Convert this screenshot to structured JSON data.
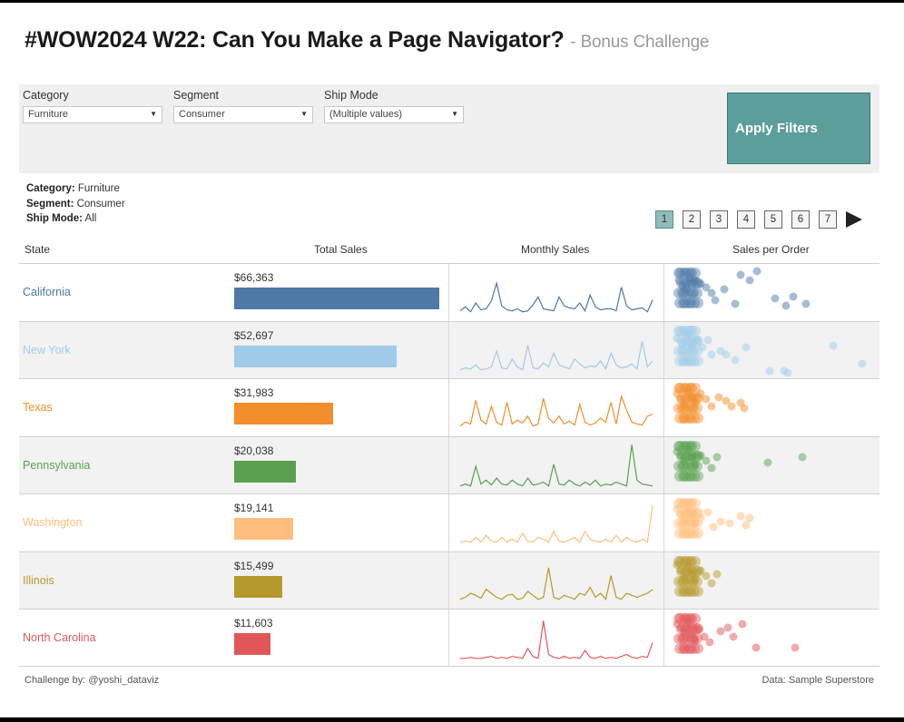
{
  "title": {
    "main": "#WOW2024 W22: Can You Make a Page Navigator?",
    "subtitle": "- Bonus Challenge"
  },
  "filters": [
    {
      "label": "Category",
      "value": "Furniture"
    },
    {
      "label": "Segment",
      "value": "Consumer"
    },
    {
      "label": "Ship Mode",
      "value": "(Multiple values)"
    }
  ],
  "apply_button": "Apply Filters",
  "summary": [
    {
      "key": "Category:",
      "value": "Furniture"
    },
    {
      "key": "Segment:",
      "value": "Consumer"
    },
    {
      "key": "Ship Mode:",
      "value": "All"
    }
  ],
  "pager": {
    "pages": [
      "1",
      "2",
      "3",
      "4",
      "5",
      "6",
      "7"
    ],
    "current_page": "1",
    "next_icon": "play-triangle-icon"
  },
  "columns": {
    "state": "State",
    "total_sales": "Total Sales",
    "monthly_sales": "Monthly Sales",
    "sales_per_order": "Sales per Order"
  },
  "rows": [
    {
      "state": "California",
      "sales_label": "$66,363",
      "sales": 66363,
      "color": "#4e79a7",
      "monthly": [
        4,
        8,
        3,
        12,
        5,
        6,
        14,
        32,
        9,
        5,
        4,
        6,
        3,
        4,
        10,
        18,
        6,
        5,
        4,
        18,
        9,
        7,
        6,
        12,
        4,
        20,
        8,
        5,
        6,
        6,
        4,
        28,
        9,
        5,
        6,
        7,
        3,
        15
      ],
      "orders": [
        [
          10,
          12
        ],
        [
          14,
          18
        ],
        [
          18,
          22
        ],
        [
          22,
          10
        ],
        [
          28,
          12
        ],
        [
          34,
          16
        ],
        [
          40,
          20
        ],
        [
          46,
          26
        ],
        [
          50,
          34
        ],
        [
          60,
          22
        ],
        [
          72,
          38
        ],
        [
          78,
          6
        ],
        [
          88,
          12
        ],
        [
          96,
          2
        ],
        [
          116,
          32
        ],
        [
          128,
          40
        ],
        [
          136,
          30
        ],
        [
          150,
          38
        ]
      ]
    },
    {
      "state": "New York",
      "sales_label": "$52,697",
      "sales": 52697,
      "color": "#a0cbe8",
      "monthly": [
        3,
        5,
        4,
        8,
        3,
        4,
        6,
        22,
        5,
        4,
        14,
        6,
        3,
        28,
        5,
        4,
        10,
        6,
        20,
        8,
        6,
        4,
        14,
        9,
        5,
        7,
        6,
        12,
        4,
        20,
        8,
        5,
        6,
        9,
        4,
        32,
        6,
        12
      ],
      "orders": [
        [
          8,
          12
        ],
        [
          14,
          18
        ],
        [
          20,
          8
        ],
        [
          24,
          20
        ],
        [
          30,
          14
        ],
        [
          36,
          22
        ],
        [
          42,
          14
        ],
        [
          46,
          30
        ],
        [
          56,
          26
        ],
        [
          62,
          30
        ],
        [
          72,
          36
        ],
        [
          84,
          22
        ],
        [
          110,
          48
        ],
        [
          126,
          48
        ],
        [
          130,
          50
        ],
        [
          180,
          20
        ],
        [
          212,
          40
        ]
      ]
    },
    {
      "state": "Texas",
      "sales_label": "$31,983",
      "sales": 31983,
      "color": "#f28e2b",
      "monthly": [
        4,
        8,
        6,
        30,
        10,
        6,
        24,
        8,
        5,
        28,
        6,
        10,
        7,
        14,
        4,
        6,
        32,
        12,
        7,
        14,
        6,
        9,
        5,
        26,
        8,
        5,
        7,
        12,
        8,
        28,
        6,
        34,
        20,
        8,
        6,
        5,
        14,
        16
      ],
      "orders": [
        [
          8,
          10
        ],
        [
          12,
          16
        ],
        [
          16,
          22
        ],
        [
          20,
          8
        ],
        [
          24,
          14
        ],
        [
          28,
          20
        ],
        [
          34,
          10
        ],
        [
          40,
          16
        ],
        [
          46,
          24
        ],
        [
          54,
          14
        ],
        [
          62,
          18
        ],
        [
          68,
          24
        ],
        [
          78,
          20
        ],
        [
          82,
          26
        ]
      ]
    },
    {
      "state": "Pennsylvania",
      "sales_label": "$20,038",
      "sales": 20038,
      "color": "#59a14f",
      "monthly": [
        2,
        4,
        2,
        22,
        4,
        8,
        3,
        10,
        4,
        3,
        8,
        4,
        2,
        10,
        3,
        4,
        6,
        2,
        24,
        4,
        3,
        8,
        4,
        2,
        6,
        3,
        8,
        2,
        4,
        3,
        6,
        4,
        2,
        44,
        8,
        4,
        3,
        2
      ],
      "orders": [
        [
          8,
          10
        ],
        [
          12,
          14
        ],
        [
          16,
          20
        ],
        [
          20,
          8
        ],
        [
          24,
          16
        ],
        [
          28,
          24
        ],
        [
          34,
          14
        ],
        [
          40,
          20
        ],
        [
          46,
          28
        ],
        [
          52,
          16
        ],
        [
          108,
          22
        ],
        [
          146,
          16
        ]
      ]
    },
    {
      "state": "Washington",
      "sales_label": "$19,141",
      "sales": 19141,
      "color": "#ffbe7d",
      "monthly": [
        3,
        4,
        3,
        8,
        3,
        10,
        4,
        3,
        8,
        3,
        6,
        3,
        12,
        4,
        3,
        8,
        6,
        3,
        14,
        4,
        3,
        5,
        8,
        3,
        14,
        6,
        4,
        3,
        6,
        3,
        10,
        3,
        8,
        4,
        3,
        6,
        3,
        40
      ],
      "orders": [
        [
          8,
          10
        ],
        [
          12,
          16
        ],
        [
          16,
          22
        ],
        [
          20,
          12
        ],
        [
          24,
          18
        ],
        [
          28,
          26
        ],
        [
          34,
          20
        ],
        [
          42,
          14
        ],
        [
          48,
          30
        ],
        [
          56,
          24
        ],
        [
          66,
          26
        ],
        [
          78,
          18
        ],
        [
          84,
          28
        ],
        [
          88,
          20
        ]
      ]
    },
    {
      "state": "Illinois",
      "sales_label": "$15,499",
      "sales": 15499,
      "color": "#b6992d",
      "monthly": [
        4,
        6,
        10,
        8,
        5,
        14,
        10,
        6,
        4,
        8,
        9,
        4,
        5,
        12,
        8,
        4,
        6,
        36,
        6,
        4,
        8,
        6,
        4,
        10,
        8,
        16,
        6,
        10,
        4,
        28,
        6,
        4,
        10,
        8,
        6,
        8,
        10,
        14
      ],
      "orders": [
        [
          8,
          8
        ],
        [
          12,
          14
        ],
        [
          16,
          22
        ],
        [
          20,
          10
        ],
        [
          24,
          18
        ],
        [
          28,
          24
        ],
        [
          34,
          14
        ],
        [
          40,
          20
        ],
        [
          46,
          28
        ],
        [
          52,
          18
        ]
      ]
    },
    {
      "state": "North Carolina",
      "sales_label": "$11,603",
      "sales": 11603,
      "color": "#e15759",
      "monthly": [
        2,
        2,
        3,
        2,
        2,
        3,
        4,
        2,
        3,
        2,
        4,
        3,
        2,
        12,
        4,
        2,
        40,
        6,
        3,
        2,
        4,
        2,
        3,
        2,
        10,
        3,
        2,
        4,
        2,
        3,
        2,
        4,
        6,
        3,
        2,
        4,
        3,
        18
      ],
      "orders": [
        [
          8,
          10
        ],
        [
          12,
          14
        ],
        [
          16,
          20
        ],
        [
          20,
          8
        ],
        [
          24,
          22
        ],
        [
          28,
          28
        ],
        [
          32,
          16
        ],
        [
          38,
          24
        ],
        [
          44,
          30
        ],
        [
          56,
          18
        ],
        [
          64,
          14
        ],
        [
          70,
          24
        ],
        [
          80,
          10
        ],
        [
          95,
          36
        ],
        [
          138,
          36
        ]
      ]
    }
  ],
  "footer": {
    "left": "Challenge by: @yoshi_dataviz",
    "right": "Data: Sample Superstore"
  }
}
